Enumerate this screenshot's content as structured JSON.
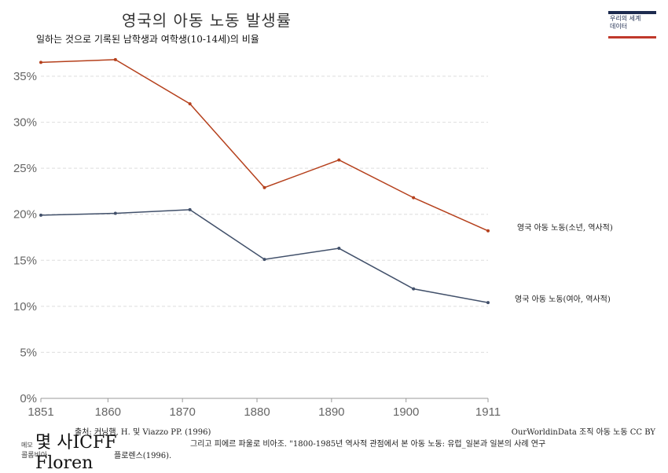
{
  "header": {
    "title": "영국의 아동 노동 발생률",
    "subtitle": "일하는 것으로 기록된 남학생과 여학생(10-14세)의 비율"
  },
  "logo": {
    "line1": "우리의 세계",
    "line2": "데이터"
  },
  "footer": {
    "source": "출처: 커닝햄, H. 및 Viazzo PP. (1996)",
    "license": "OurWorldinData 조직 아동 노동 CC BY",
    "note_line1": "그리고 피에르 파울로 비아조. \"1800-1985년 역사적 관점에서 본 아동 노동: 유럽_일본과 일본의 사례 연구",
    "note_line2": "플로렌스(1996).",
    "small1": "메모",
    "small2": "콜롬비아",
    "overlay_line1": "몇 사ICFF",
    "overlay_line2": "Floren"
  },
  "chart_data": {
    "type": "line",
    "x": [
      1851,
      1861,
      1871,
      1881,
      1891,
      1901,
      1911
    ],
    "series": [
      {
        "name": "영국 아동 노동(소년, 역사적)",
        "color": "#b5401c",
        "values": [
          36.5,
          36.8,
          32.0,
          22.9,
          25.9,
          21.8,
          18.2
        ]
      },
      {
        "name": "영국 아동 노동(여아, 역사적)",
        "color": "#41506a",
        "values": [
          19.9,
          20.1,
          20.5,
          15.1,
          16.3,
          11.9,
          10.4
        ]
      }
    ],
    "xticks": [
      1851,
      1860,
      1870,
      1880,
      1890,
      1900,
      1911
    ],
    "yticks": [
      0,
      5,
      10,
      15,
      20,
      25,
      30,
      35
    ],
    "ytick_suffix": "%",
    "xlim": [
      1851,
      1911
    ],
    "ylim": [
      0,
      37
    ],
    "grid": true
  }
}
